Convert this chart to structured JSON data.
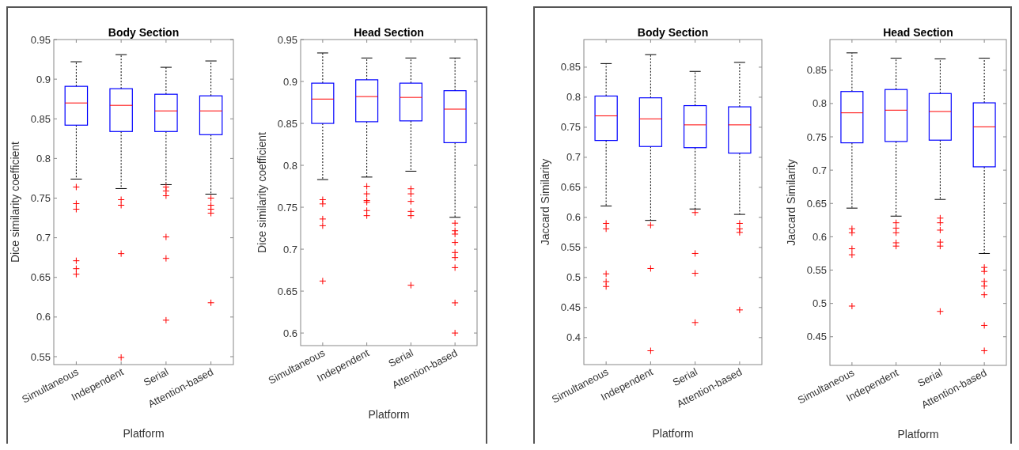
{
  "chart_data": [
    {
      "type": "box",
      "title": "Body Section",
      "xlabel": "Platform",
      "ylabel": "Dice similarity coefficient",
      "categories": [
        "Simultaneous",
        "Independent",
        "Serial",
        "Attention-based"
      ],
      "color": "#0000ff",
      "marker": "cross",
      "ylim": [
        0.54,
        0.95
      ],
      "yticks": [
        0.55,
        0.6,
        0.65,
        0.7,
        0.75,
        0.8,
        0.85,
        0.9,
        0.95
      ],
      "boxes": [
        {
          "low": 0.774,
          "q1": 0.842,
          "median": 0.87,
          "q3": 0.891,
          "high": 0.922,
          "outliers": [
            0.764,
            0.743,
            0.736,
            0.671,
            0.661,
            0.654
          ]
        },
        {
          "low": 0.762,
          "q1": 0.834,
          "median": 0.867,
          "q3": 0.888,
          "high": 0.931,
          "outliers": [
            0.748,
            0.741,
            0.68,
            0.549
          ]
        },
        {
          "low": 0.767,
          "q1": 0.834,
          "median": 0.86,
          "q3": 0.881,
          "high": 0.915,
          "outliers": [
            0.764,
            0.759,
            0.753,
            0.701,
            0.674,
            0.596
          ]
        },
        {
          "low": 0.755,
          "q1": 0.83,
          "median": 0.86,
          "q3": 0.879,
          "high": 0.923,
          "outliers": [
            0.75,
            0.741,
            0.736,
            0.731,
            0.618
          ]
        }
      ]
    },
    {
      "type": "box",
      "title": "Head Section",
      "xlabel": "Platform",
      "ylabel": "Dice similarity coefficient",
      "categories": [
        "Simultaneous",
        "Independent",
        "Serial",
        "Attention-based"
      ],
      "color": "#0000ff",
      "marker": "cross",
      "ylim": [
        0.585,
        0.95
      ],
      "yticks": [
        0.6,
        0.65,
        0.7,
        0.75,
        0.8,
        0.85,
        0.9,
        0.95
      ],
      "boxes": [
        {
          "low": 0.783,
          "q1": 0.85,
          "median": 0.879,
          "q3": 0.898,
          "high": 0.934,
          "outliers": [
            0.759,
            0.754,
            0.736,
            0.728,
            0.662
          ]
        },
        {
          "low": 0.786,
          "q1": 0.852,
          "median": 0.882,
          "q3": 0.902,
          "high": 0.928,
          "outliers": [
            0.775,
            0.766,
            0.758,
            0.756,
            0.746,
            0.74
          ]
        },
        {
          "low": 0.793,
          "q1": 0.853,
          "median": 0.881,
          "q3": 0.898,
          "high": 0.928,
          "outliers": [
            0.772,
            0.766,
            0.757,
            0.745,
            0.74,
            0.657
          ]
        },
        {
          "low": 0.738,
          "q1": 0.827,
          "median": 0.867,
          "q3": 0.889,
          "high": 0.928,
          "outliers": [
            0.731,
            0.722,
            0.718,
            0.708,
            0.696,
            0.69,
            0.678,
            0.636,
            0.6
          ]
        }
      ]
    },
    {
      "type": "box",
      "title": "Body Section",
      "xlabel": "Platform",
      "ylabel": "Jaccard Similarity",
      "categories": [
        "Simultaneous",
        "Independent",
        "Serial",
        "Attention-based"
      ],
      "color": "#0000ff",
      "marker": "cross",
      "ylim": [
        0.355,
        0.896
      ],
      "yticks": [
        0.4,
        0.45,
        0.5,
        0.55,
        0.6,
        0.65,
        0.7,
        0.75,
        0.8,
        0.85
      ],
      "boxes": [
        {
          "low": 0.619,
          "q1": 0.728,
          "median": 0.769,
          "q3": 0.802,
          "high": 0.856,
          "outliers": [
            0.59,
            0.581,
            0.506,
            0.493,
            0.485
          ]
        },
        {
          "low": 0.595,
          "q1": 0.718,
          "median": 0.764,
          "q3": 0.799,
          "high": 0.871,
          "outliers": [
            0.587,
            0.515,
            0.378
          ]
        },
        {
          "low": 0.614,
          "q1": 0.716,
          "median": 0.754,
          "q3": 0.786,
          "high": 0.843,
          "outliers": [
            0.608,
            0.54,
            0.507,
            0.425
          ]
        },
        {
          "low": 0.605,
          "q1": 0.707,
          "median": 0.754,
          "q3": 0.784,
          "high": 0.858,
          "outliers": [
            0.59,
            0.581,
            0.575,
            0.446
          ]
        }
      ]
    },
    {
      "type": "box",
      "title": "Head Section",
      "xlabel": "Platform",
      "ylabel": "Jaccard Similarity",
      "categories": [
        "Simultaneous",
        "Independent",
        "Serial",
        "Attention-based"
      ],
      "color": "#0000ff",
      "marker": "cross",
      "ylim": [
        0.407,
        0.896
      ],
      "yticks": [
        0.45,
        0.5,
        0.55,
        0.6,
        0.65,
        0.7,
        0.75,
        0.8,
        0.85
      ],
      "boxes": [
        {
          "low": 0.643,
          "q1": 0.741,
          "median": 0.786,
          "q3": 0.818,
          "high": 0.876,
          "outliers": [
            0.612,
            0.606,
            0.582,
            0.573,
            0.496
          ]
        },
        {
          "low": 0.631,
          "q1": 0.743,
          "median": 0.79,
          "q3": 0.821,
          "high": 0.868,
          "outliers": [
            0.621,
            0.613,
            0.606,
            0.591,
            0.586
          ]
        },
        {
          "low": 0.656,
          "q1": 0.745,
          "median": 0.788,
          "q3": 0.815,
          "high": 0.867,
          "outliers": [
            0.628,
            0.621,
            0.61,
            0.592,
            0.586,
            0.488
          ]
        },
        {
          "low": 0.575,
          "q1": 0.705,
          "median": 0.765,
          "q3": 0.801,
          "high": 0.868,
          "outliers": [
            0.554,
            0.548,
            0.533,
            0.526,
            0.513,
            0.467,
            0.429
          ]
        }
      ]
    }
  ]
}
